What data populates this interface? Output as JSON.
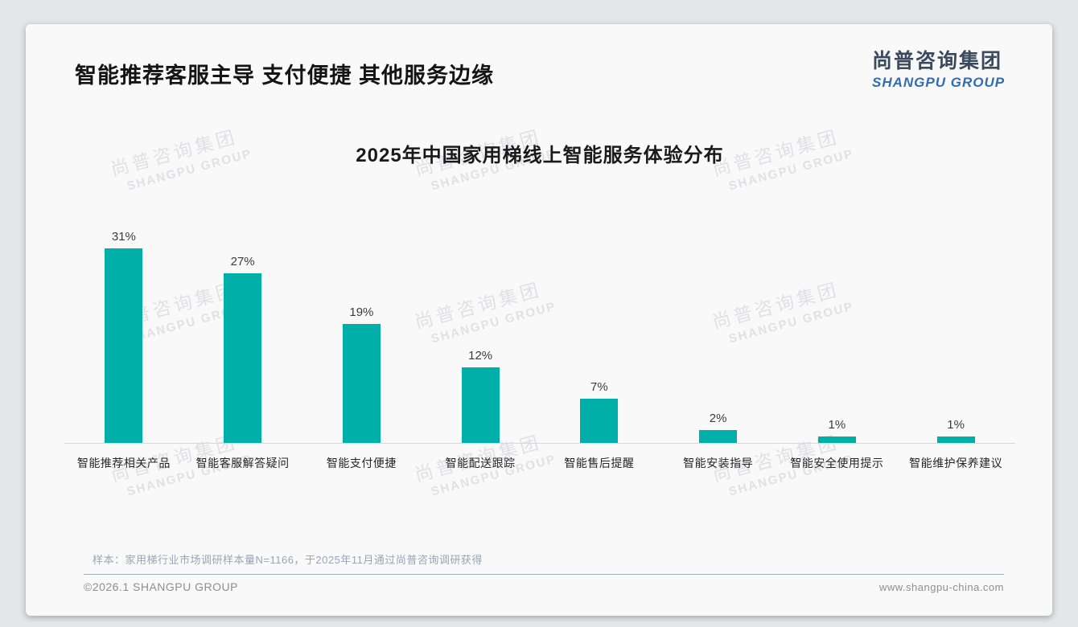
{
  "page": {
    "title": "智能推荐客服主导 支付便捷 其他服务边缘",
    "logo": {
      "cn": "尚普咨询集团",
      "en": "SHANGPU GROUP"
    },
    "note": "样本：家用梯行业市场调研样本量N=1166，于2025年11月通过尚普咨询调研获得",
    "footer_left": "©2026.1 SHANGPU GROUP",
    "footer_right": "www.shangpu-china.com",
    "watermark": {
      "cn": "尚普咨询集团",
      "en": "SHANGPU GROUP"
    }
  },
  "colors": {
    "bar": "#00b0a8",
    "logo_cn": "#3a4a5c",
    "logo_en": "#2f6eb2",
    "watermark": "#e1e1e3"
  },
  "chart_data": {
    "type": "bar",
    "title": "2025年中国家用梯线上智能服务体验分布",
    "categories": [
      "智能推荐相关产品",
      "智能客服解答疑问",
      "智能支付便捷",
      "智能配送跟踪",
      "智能售后提醒",
      "智能安装指导",
      "智能安全使用提示",
      "智能维护保养建议"
    ],
    "values": [
      31,
      27,
      19,
      12,
      7,
      2,
      1,
      1
    ],
    "value_labels": [
      "31%",
      "27%",
      "19%",
      "12%",
      "7%",
      "2%",
      "1%",
      "1%"
    ],
    "unit": "%",
    "xlabel": "",
    "ylabel": "",
    "ylim": [
      0,
      35
    ],
    "grid": false,
    "legend": false,
    "bar_color": "#00b0a8"
  }
}
